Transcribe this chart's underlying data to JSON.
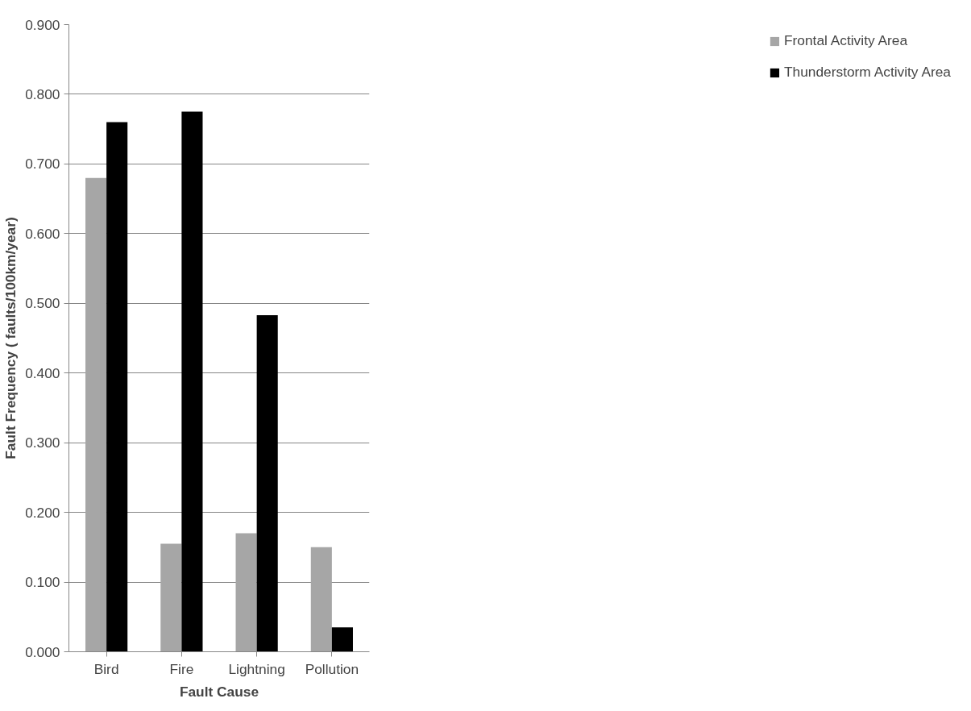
{
  "chart_data": {
    "type": "bar",
    "xlabel": "Fault Cause",
    "ylabel": "Fault Frequency ( faults/100km/year)",
    "categories": [
      "Bird",
      "Fire",
      "Lightning",
      "Pollution"
    ],
    "series": [
      {
        "name": "Frontal Activity Area",
        "color": "#a6a6a6",
        "values": [
          0.68,
          0.155,
          0.17,
          0.15
        ]
      },
      {
        "name": "Thunderstorm Activity Area",
        "color": "#000000",
        "values": [
          0.76,
          0.775,
          0.483,
          0.035
        ]
      }
    ],
    "ylim": [
      0,
      0.9
    ],
    "yticks": [
      {
        "value": 0,
        "label": "0.000"
      },
      {
        "value": 0.1,
        "label": "0.100"
      },
      {
        "value": 0.2,
        "label": "0.200"
      },
      {
        "value": 0.3,
        "label": "0.300"
      },
      {
        "value": 0.4,
        "label": "0.400"
      },
      {
        "value": 0.5,
        "label": "0.500"
      },
      {
        "value": 0.6,
        "label": "0.600"
      },
      {
        "value": 0.7,
        "label": "0.700"
      },
      {
        "value": 0.8,
        "label": "0.800"
      },
      {
        "value": 0.9,
        "label": "0.900"
      }
    ],
    "grid": "y",
    "legend": "right"
  }
}
